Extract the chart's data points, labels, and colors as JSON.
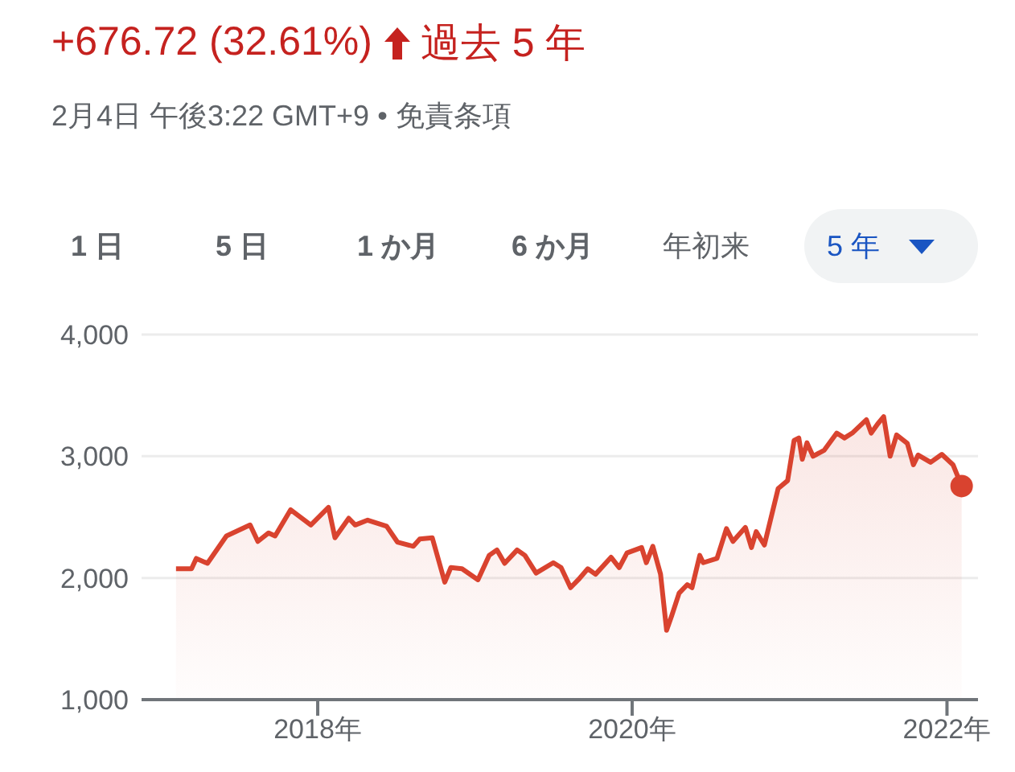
{
  "chart_data": {
    "type": "area",
    "title": "+676.72 (32.61%)",
    "subtitle": "2月4日 午後3:22 GMT+9 • 免責条項",
    "annotations": [
      "過去 5 年",
      "1 日",
      "5 日",
      "1 か月",
      "6 か月",
      "年初来",
      "5 年"
    ],
    "x": [
      "2017-02-06",
      "2017-03-14",
      "2017-03-25",
      "2017-04-20",
      "2017-06-03",
      "2017-07-28",
      "2017-08-15",
      "2017-09-09",
      "2017-09-24",
      "2017-10-30",
      "2017-12-16",
      "2018-01-26",
      "2018-02-10",
      "2018-03-14",
      "2018-03-29",
      "2018-04-27",
      "2018-06-10",
      "2018-07-05",
      "2018-08-11",
      "2018-08-26",
      "2018-09-24",
      "2018-10-23",
      "2018-11-06",
      "2018-12-02",
      "2019-01-08",
      "2019-02-03",
      "2019-02-21",
      "2019-03-11",
      "2019-04-09",
      "2019-04-27",
      "2019-05-23",
      "2019-07-02",
      "2019-07-20",
      "2019-08-11",
      "2019-08-29",
      "2019-09-20",
      "2019-10-08",
      "2019-11-13",
      "2019-12-02",
      "2019-12-20",
      "2020-01-23",
      "2020-02-03",
      "2020-02-18",
      "2020-03-07",
      "2020-03-21",
      "2020-04-01",
      "2020-04-19",
      "2020-05-08",
      "2020-05-19",
      "2020-06-06",
      "2020-06-14",
      "2020-07-16",
      "2020-08-07",
      "2020-08-22",
      "2020-09-20",
      "2020-10-04",
      "2020-10-15",
      "2020-11-03",
      "2020-12-05",
      "2020-12-27",
      "2021-01-11",
      "2021-01-22",
      "2021-01-30",
      "2021-02-10",
      "2021-02-24",
      "2021-03-22",
      "2021-04-20",
      "2021-05-08",
      "2021-05-26",
      "2021-06-28",
      "2021-07-09",
      "2021-07-24",
      "2021-08-07",
      "2021-08-22",
      "2021-09-06",
      "2021-10-01",
      "2021-10-15",
      "2021-10-26",
      "2021-11-24",
      "2021-12-20",
      "2022-01-15",
      "2022-02-04"
    ],
    "series": [
      {
        "color": "#d9432f",
        "values": [
          2075,
          2075,
          2160,
          2120,
          2345,
          2435,
          2300,
          2370,
          2345,
          2560,
          2435,
          2580,
          2330,
          2490,
          2435,
          2475,
          2425,
          2295,
          2260,
          2320,
          2330,
          1965,
          2085,
          2075,
          1985,
          2185,
          2230,
          2120,
          2230,
          2185,
          2040,
          2125,
          2085,
          1920,
          1985,
          2075,
          2030,
          2170,
          2085,
          2205,
          2250,
          2125,
          2260,
          2030,
          1570,
          1680,
          1875,
          1945,
          1920,
          2185,
          2125,
          2160,
          2405,
          2300,
          2415,
          2250,
          2380,
          2270,
          2735,
          2800,
          3130,
          3150,
          2975,
          3110,
          3000,
          3050,
          3190,
          3150,
          3190,
          3300,
          3190,
          3265,
          3325,
          3000,
          3175,
          3105,
          2930,
          3010,
          2950,
          3015,
          2930,
          2755
        ]
      }
    ],
    "xlim": [
      "2016-11-18",
      "2022-03-14"
    ],
    "xticks": [
      {
        "value": "2018-01-01",
        "label": "2018年"
      },
      {
        "value": "2020-01-01",
        "label": "2020年"
      },
      {
        "value": "2022-01-01",
        "label": "2022年"
      }
    ],
    "ylim": [
      1000,
      4000
    ],
    "yticks": [
      {
        "value": 1000,
        "label": "1,000"
      },
      {
        "value": 2000,
        "label": "2,000"
      },
      {
        "value": 3000,
        "label": "3,000"
      },
      {
        "value": 4000,
        "label": "4,000"
      }
    ],
    "grid": "y",
    "marker": "none",
    "line_style": "solid"
  }
}
